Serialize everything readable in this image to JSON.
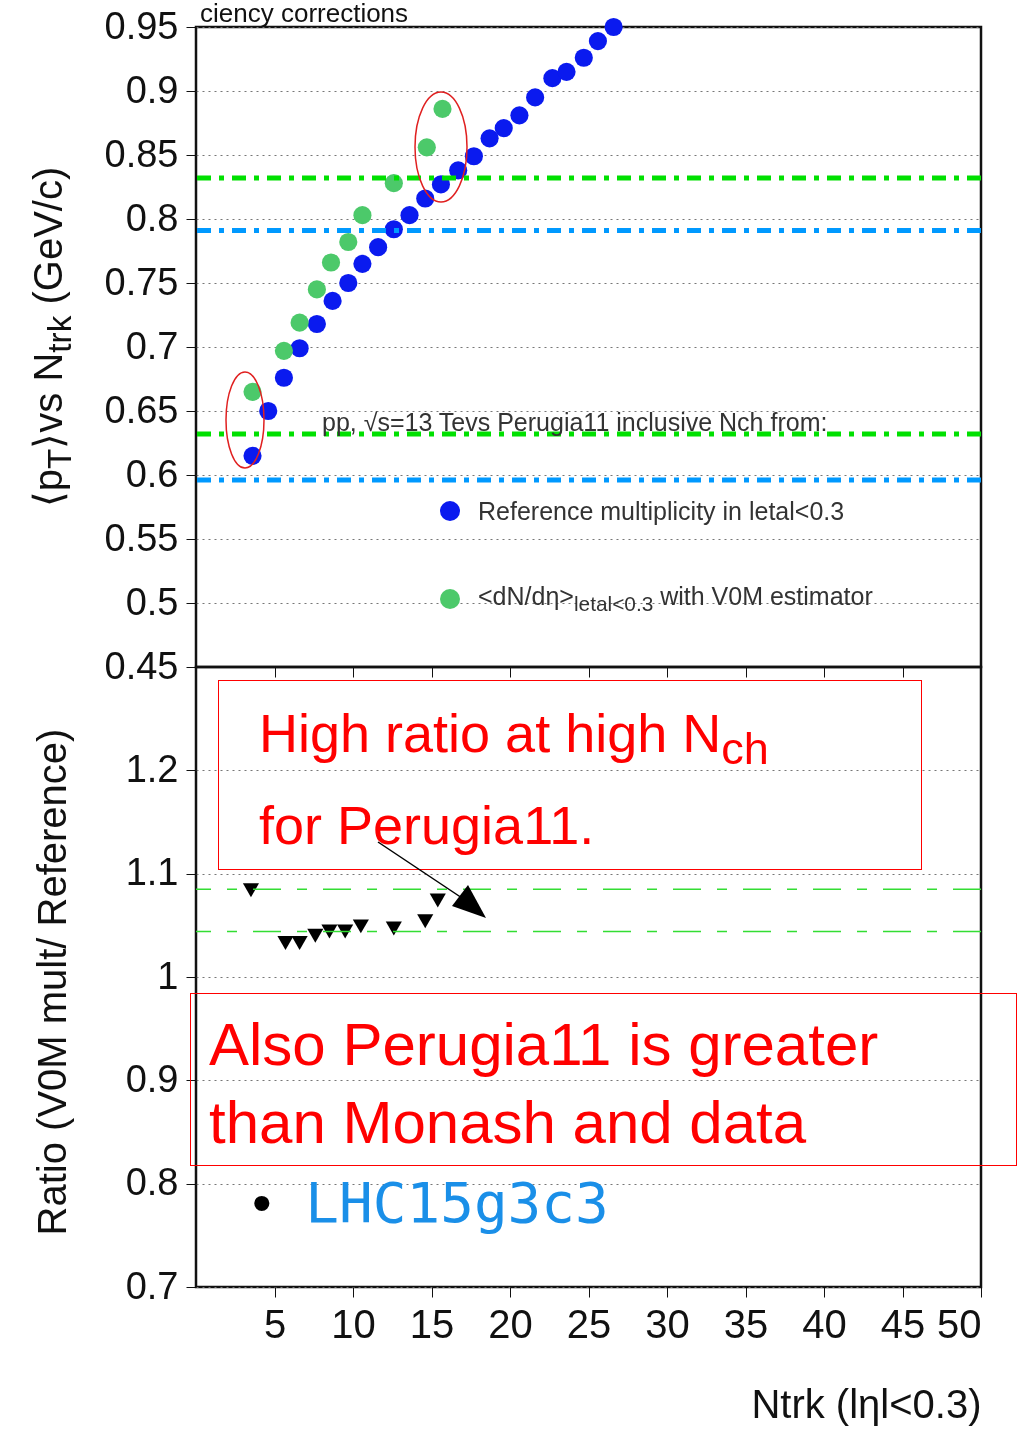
{
  "chart_data": [
    {
      "type": "scatter",
      "annotations": [
        "ciency corrections"
      ],
      "ylabel": "⟨p$_{T}$⟩vs N$_{trk}$  (GeV/c)",
      "legend_title": "pp, √s=13 Tevs Perugia11 inclusive Nch from:",
      "legend": "bottom right",
      "marker": "circle",
      "grid": "y",
      "tick_labels": "y",
      "xlim": [
        0,
        50
      ],
      "xticks": [
        5,
        10,
        15,
        20,
        25,
        30,
        35,
        40,
        45,
        50
      ],
      "ylim": [
        0.45,
        0.95
      ],
      "yticks": [
        0.45,
        0.5,
        0.55,
        0.6,
        0.65,
        0.7,
        0.75,
        0.8,
        0.85,
        0.9,
        0.95
      ],
      "ref_lines": [
        {
          "axis": "y",
          "value": 0.832,
          "color": "#00e000",
          "line_style": "dashed"
        },
        {
          "axis": "y",
          "value": 0.791,
          "color": "#0099ff",
          "line_style": "dashed"
        },
        {
          "axis": "y",
          "value": 0.632,
          "color": "#00e000",
          "line_style": "dashed"
        },
        {
          "axis": "y",
          "value": 0.596,
          "color": "#0099ff",
          "line_style": "dashed"
        }
      ],
      "series": [
        {
          "name": "Reference multiplicity in letal<0.3",
          "color": "#0a1aef",
          "x": [
            3.6,
            4.6,
            5.6,
            6.6,
            7.7,
            8.7,
            9.7,
            10.6,
            11.6,
            12.6,
            13.6,
            14.6,
            15.6,
            16.7,
            17.7,
            18.7,
            19.6,
            20.6,
            21.6,
            22.7,
            23.6,
            24.7,
            25.6,
            26.6
          ],
          "values": [
            0.615,
            0.65,
            0.676,
            0.699,
            0.718,
            0.736,
            0.75,
            0.765,
            0.778,
            0.792,
            0.803,
            0.816,
            0.827,
            0.838,
            0.849,
            0.863,
            0.871,
            0.881,
            0.895,
            0.91,
            0.915,
            0.926,
            0.939,
            0.95
          ]
        },
        {
          "name": "<dN/dη>$_{letal<0.3}$ with V0M estimator",
          "color": "#4cc96a",
          "x": [
            3.6,
            5.6,
            6.6,
            7.7,
            8.6,
            9.7,
            10.6,
            12.6,
            14.7,
            15.7
          ],
          "values": [
            0.665,
            0.697,
            0.719,
            0.745,
            0.766,
            0.782,
            0.803,
            0.828,
            0.856,
            0.886
          ]
        }
      ]
    },
    {
      "type": "scatter",
      "xlabel": "Ntrk (lηl<0.3)",
      "ylabel": "Ratio (V0M mult/ Reference)",
      "marker": "triangle",
      "grid": "y",
      "xlim": [
        0,
        50
      ],
      "xticks": [
        5,
        10,
        15,
        20,
        25,
        30,
        35,
        40,
        45,
        50
      ],
      "ylim": [
        0.7,
        1.3
      ],
      "yticks": [
        0.7,
        0.8,
        0.9,
        1,
        1.1,
        1.2
      ],
      "annotations": [
        "High ratio at high N$_{ch}$ for Perugia11.",
        "Also Perugia11 is greater than Monash and data",
        "• LHC15g3c3"
      ],
      "ref_lines": [
        {
          "axis": "y",
          "value": 1.085,
          "color": "#33dd33",
          "line_style": "dashed"
        },
        {
          "axis": "y",
          "value": 1.044,
          "color": "#33dd33",
          "line_style": "dashed"
        }
      ],
      "series": [
        {
          "color": "#000000",
          "x": [
            3.5,
            5.7,
            6.6,
            7.6,
            8.5,
            9.5,
            10.5,
            12.6,
            14.6,
            15.4
          ],
          "values": [
            1.084,
            1.033,
            1.033,
            1.04,
            1.044,
            1.044,
            1.049,
            1.047,
            1.054,
            1.074
          ]
        }
      ]
    }
  ]
}
